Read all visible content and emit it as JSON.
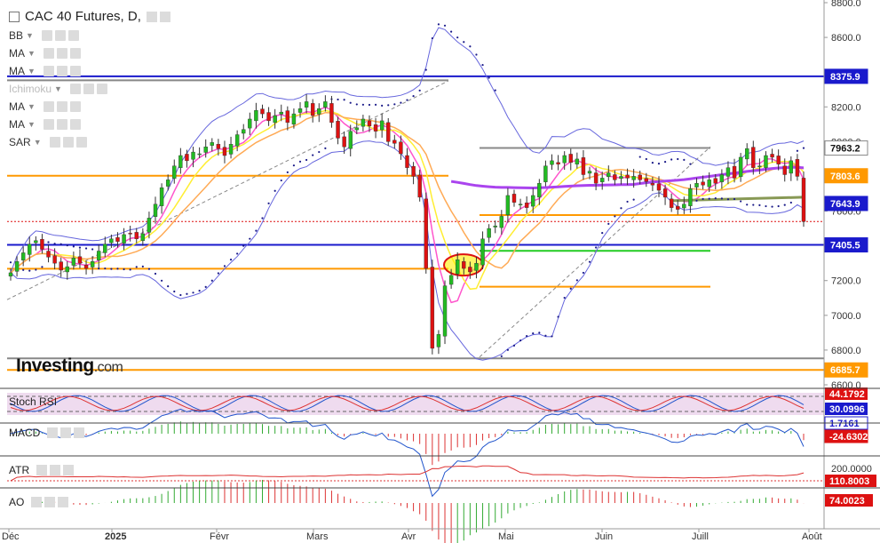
{
  "header": {
    "title": "CAC 40 Futures, D,",
    "indicators": [
      "BB",
      "MA",
      "MA",
      "Ichimoku",
      "MA",
      "MA",
      "SAR"
    ]
  },
  "watermark": {
    "brand": "Investing",
    "domain": ".com"
  },
  "subpanels": {
    "stoch_rsi": "Stoch RSI",
    "macd": "MACD",
    "atr": "ATR",
    "ao": "AO"
  },
  "colors": {
    "up_candle": "#22bb22",
    "down_candle": "#dd1111",
    "bollinger": "#6666dd",
    "blue_level": "#1a1acc",
    "orange_level": "#ff9900",
    "green_level": "#22cc22",
    "grey_level": "#888888",
    "ma_purple": "#aa44ee"
  },
  "chart_data": [
    {
      "type": "candlestick",
      "title": "CAC 40 Futures, D,",
      "x_labels": [
        "Déc",
        "2025",
        "Févr",
        "Mars",
        "Avr",
        "Mai",
        "Juin",
        "Juill",
        "Août"
      ],
      "y_ticks": [
        "8800.0",
        "8600.0",
        "8400.0",
        "8200.0",
        "8000.0",
        "7800.0",
        "7600.0",
        "7400.0",
        "7200.0",
        "7000.0",
        "6800.0",
        "6600.0"
      ],
      "ylim": [
        6600,
        8800
      ],
      "last_close": 7540,
      "price_tags": [
        {
          "label": "8375.9",
          "value": 8375.9,
          "color": "#1a1acc"
        },
        {
          "label": "7963.2",
          "value": 7963.2,
          "color": "#ffffff"
        },
        {
          "label": "7803.6",
          "value": 7803.6,
          "color": "#ff9900"
        },
        {
          "label": "7643.9",
          "value": 7643.9,
          "color": "#1a1acc"
        },
        {
          "label": "7405.5",
          "value": 7405.5,
          "color": "#1a1acc"
        },
        {
          "label": "6685.7",
          "value": 6685.7,
          "color": "#ff9900"
        }
      ],
      "horizontal_levels": [
        {
          "value": 8375.9,
          "color": "#1a1acc",
          "extent": "full"
        },
        {
          "value": 8353,
          "color": "#888888",
          "extent": "left"
        },
        {
          "value": 7963.2,
          "color": "#888888",
          "extent": "right"
        },
        {
          "value": 7803.6,
          "color": "#ff9900",
          "extent": "left"
        },
        {
          "value": 7577,
          "color": "#ff9900",
          "extent": "right"
        },
        {
          "value": 7405.5,
          "color": "#1a1acc",
          "extent": "full"
        },
        {
          "value": 7371,
          "color": "#22cc22",
          "extent": "right"
        },
        {
          "value": 7268,
          "color": "#ff9900",
          "extent": "left"
        },
        {
          "value": 7165,
          "color": "#ff9900",
          "extent": "right"
        },
        {
          "value": 6752,
          "color": "#888888",
          "extent": "full"
        },
        {
          "value": 6685.7,
          "color": "#ff9900",
          "extent": "full"
        }
      ],
      "closes": [
        7245,
        7310,
        7360,
        7410,
        7430,
        7380,
        7335,
        7300,
        7260,
        7280,
        7330,
        7300,
        7270,
        7310,
        7370,
        7410,
        7440,
        7425,
        7465,
        7470,
        7440,
        7470,
        7560,
        7640,
        7735,
        7780,
        7860,
        7920,
        7890,
        7940,
        7930,
        7970,
        7995,
        7960,
        7920,
        7985,
        8040,
        8070,
        8130,
        8180,
        8160,
        8120,
        8150,
        8170,
        8110,
        8160,
        8190,
        8230,
        8150,
        8190,
        8230,
        8110,
        8020,
        7970,
        8060,
        8080,
        8130,
        8090,
        8060,
        8120,
        8000,
        7990,
        7930,
        7850,
        7800,
        7680,
        7270,
        6810,
        6890,
        7170,
        7230,
        7320,
        7270,
        7250,
        7300,
        7440,
        7500,
        7515,
        7570,
        7690,
        7650,
        7640,
        7620,
        7690,
        7760,
        7860,
        7890,
        7870,
        7920,
        7880,
        7900,
        7810,
        7830,
        7760,
        7790,
        7820,
        7780,
        7800,
        7790,
        7800,
        7780,
        7770,
        7750,
        7720,
        7680,
        7620,
        7610,
        7640,
        7730,
        7760,
        7750,
        7780,
        7760,
        7810,
        7850,
        7790,
        7910,
        7960,
        7850,
        7860,
        7920,
        7910,
        7870,
        7810,
        7890,
        7800,
        7540
      ],
      "overlays": [
        "Bollinger Bands",
        "Moving Averages",
        "Ichimoku",
        "Parabolic SAR"
      ]
    },
    {
      "type": "line",
      "name": "Stoch RSI",
      "y_ticks": [
        "44.1792",
        "30.0996"
      ],
      "last_values": [
        44.1792,
        30.0996
      ]
    },
    {
      "type": "line",
      "name": "MACD",
      "y_ticks": [
        "1.7161",
        "-24.6302"
      ],
      "last_values": [
        1.7161,
        -24.6302
      ]
    },
    {
      "type": "line",
      "name": "ATR",
      "y_ticks": [
        "200.0000",
        "110.8003"
      ],
      "last_values": [
        110.8003
      ]
    },
    {
      "type": "bar",
      "name": "AO",
      "y_ticks": [
        "74.0023"
      ],
      "last_values": [
        74.0023
      ]
    }
  ]
}
